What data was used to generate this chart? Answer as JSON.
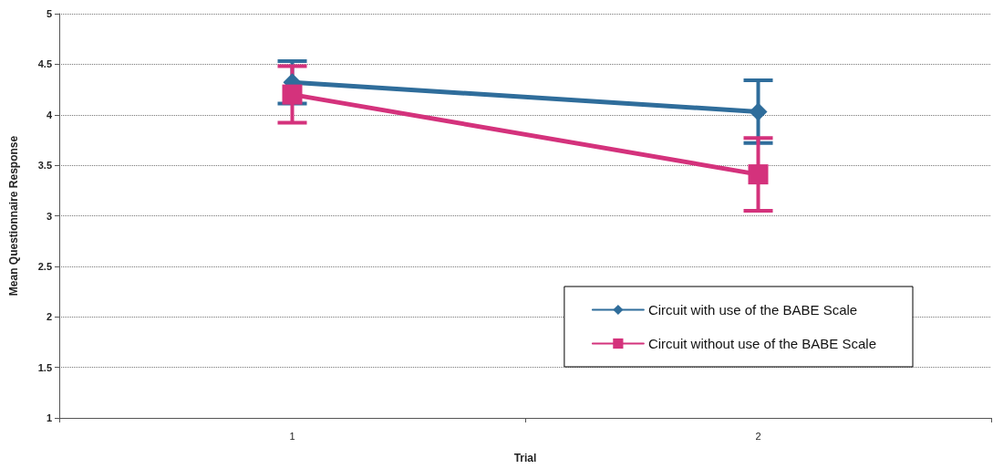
{
  "chart_data": {
    "type": "line",
    "xlabel": "Trial",
    "ylabel": "Mean Questionnaire Response",
    "categories": [
      "1",
      "2"
    ],
    "series": [
      {
        "name": "Circuit with use of the BABE Scale",
        "color": "#2f6d9b",
        "values": [
          4.32,
          4.03
        ],
        "errors": [
          0.21,
          0.31
        ],
        "marker": "diamond"
      },
      {
        "name": "Circuit without use of the BABE Scale",
        "color": "#d4327c",
        "values": [
          4.2,
          3.41
        ],
        "errors": [
          0.28,
          0.36
        ],
        "marker": "square"
      }
    ],
    "ylim": [
      1,
      5
    ],
    "yticks": [
      1,
      1.5,
      2,
      2.5,
      3,
      3.5,
      4,
      4.5,
      5
    ],
    "grid": "y",
    "legend": "bottom right",
    "line_style": "solid"
  }
}
